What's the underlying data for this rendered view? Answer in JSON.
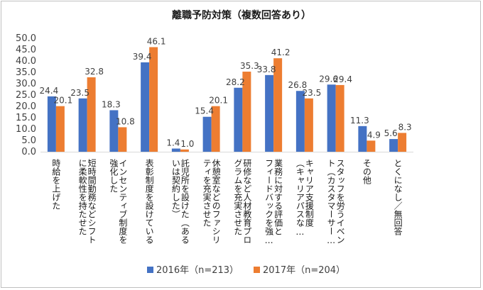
{
  "chart_data": {
    "type": "bar",
    "title": "離職予防対策（複数回答あり）",
    "categories": [
      "時給を上げた",
      "短時間勤務などシフトに柔軟性を持たせた",
      "インセンティブ制度を強化した",
      "表彰制度を設けている",
      "託児所を設けた（あるいは契約した）",
      "休憩室などのファシリティを充実させた",
      "研修など人材教育プログラムを充実させた",
      "業務に対する評価とフィードバックを強…",
      "キャリア支援制度（キャリアパスな…",
      "スタッフを労うイベント（カスタマーサー…",
      "その他",
      "とくになし／無回答"
    ],
    "category_lines": [
      [
        "時給を上げた"
      ],
      [
        "に柔軟性を持たせた",
        "短時間勤務などシフト"
      ],
      [
        "強化した",
        "インセンティブ制度を"
      ],
      [
        "表彰制度を設けている"
      ],
      [
        "いは契約した）",
        "託児所を設けた（ある"
      ],
      [
        "ティを充実させた",
        "休憩室などのファシリ"
      ],
      [
        "グラムを充実させた",
        "研修など人材教育プロ"
      ],
      [
        "フィードバックを強…",
        "業務に対する評価と"
      ],
      [
        "（キャリアパスな…",
        "キャリア支援制度"
      ],
      [
        "ト（カスタマーサー…",
        "スタッフを労うイベン"
      ],
      [
        "その他"
      ],
      [
        "とくになし／無回答"
      ]
    ],
    "series": [
      {
        "name": "2016年（n=213）",
        "color": "#4472c4",
        "values": [
          24.4,
          23.5,
          18.3,
          39.4,
          1.4,
          15.4,
          28.2,
          33.8,
          26.8,
          29.6,
          11.3,
          5.6
        ]
      },
      {
        "name": "2017年（n=204）",
        "color": "#ed7d31",
        "values": [
          20.1,
          32.8,
          10.8,
          46.1,
          1.0,
          20.1,
          35.3,
          41.2,
          23.5,
          29.4,
          4.9,
          8.3
        ]
      }
    ],
    "ylim": [
      0,
      50
    ],
    "yticks": [
      "0.0",
      "5.0",
      "10.0",
      "15.0",
      "20.0",
      "25.0",
      "30.0",
      "35.0",
      "40.0",
      "45.0",
      "50.0"
    ],
    "xlabel": "",
    "ylabel": "",
    "grid": false,
    "legend_position": "bottom"
  }
}
